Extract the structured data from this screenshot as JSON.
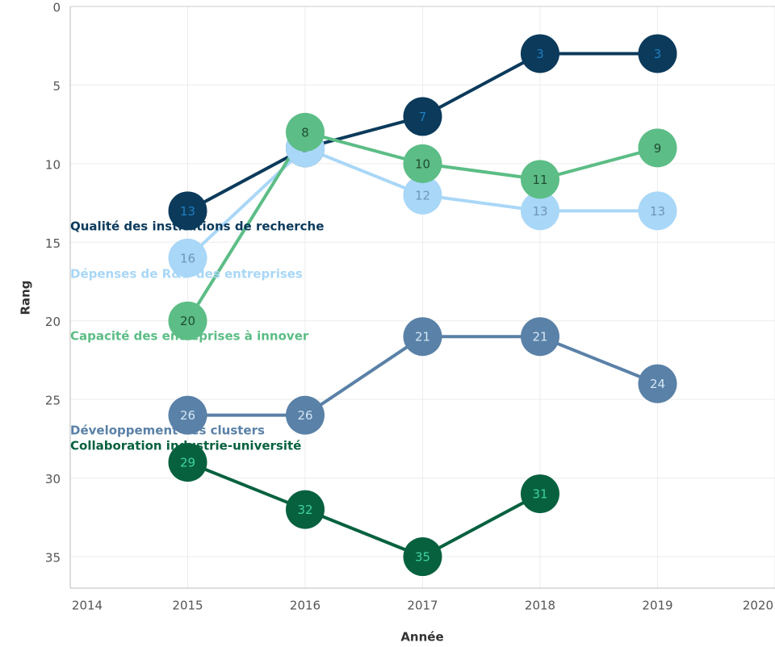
{
  "chart_data": {
    "type": "line",
    "x": [
      2015,
      2016,
      2017,
      2018,
      2019
    ],
    "xlim": [
      2014,
      2020
    ],
    "xticks": [
      2014,
      2015,
      2016,
      2017,
      2018,
      2019,
      2020
    ],
    "ylim": [
      0,
      37
    ],
    "yticks": [
      0,
      5,
      10,
      15,
      20,
      25,
      30,
      35
    ],
    "y_inverted": true,
    "xlabel": "Année",
    "ylabel": "Rang",
    "grid": true,
    "series": [
      {
        "name": "Qualité des institutions de recherche",
        "color": "#0b3a5b",
        "label_color": "#1f7fc0",
        "values": [
          13,
          9,
          7,
          3,
          3
        ]
      },
      {
        "name": "Dépenses de R&D des entreprises",
        "color": "#a9d7f7",
        "label_color": "#6f96b6",
        "values": [
          16,
          9,
          12,
          13,
          13
        ]
      },
      {
        "name": "Capacité des entreprises à innover",
        "color": "#5cbd86",
        "label_color": "#1f4d34",
        "values": [
          20,
          8,
          10,
          11,
          9
        ]
      },
      {
        "name": "Développement des clusters",
        "color": "#5a81a7",
        "label_color": "#d3e6f6",
        "values": [
          26,
          26,
          21,
          21,
          24
        ]
      },
      {
        "name": "Collaboration industrie-université",
        "color": "#07613f",
        "label_color": "#3fd3a2",
        "values": [
          29,
          32,
          35,
          31,
          null
        ]
      }
    ]
  }
}
